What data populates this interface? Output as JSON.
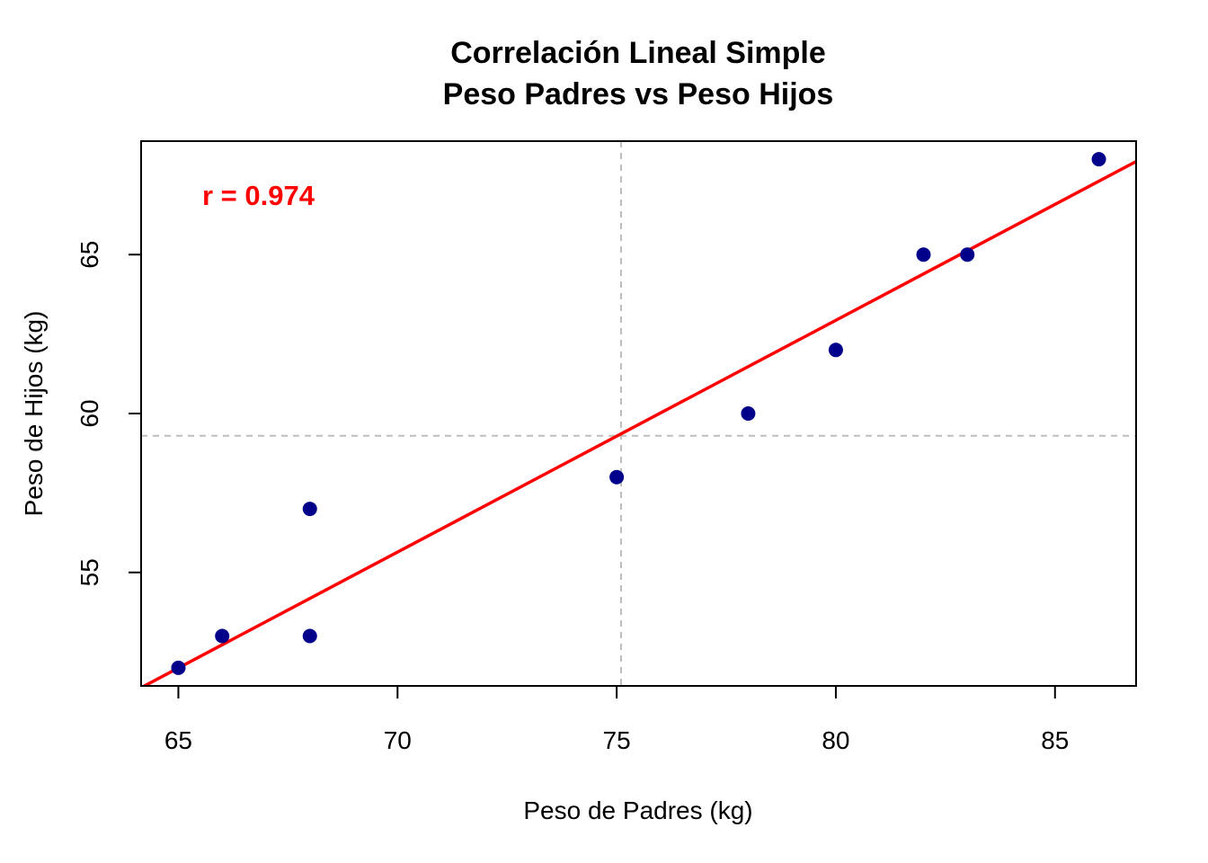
{
  "chart_data": {
    "type": "scatter",
    "title": "Correlación Lineal Simple",
    "subtitle": "Peso Padres vs Peso Hijos",
    "xlabel": "Peso de Padres (kg)",
    "ylabel": "Peso de Hijos (kg)",
    "xlim": [
      64.15,
      86.85
    ],
    "ylim": [
      51.43,
      68.57
    ],
    "x_ticks": [
      65,
      70,
      75,
      80,
      85
    ],
    "y_ticks": [
      55,
      60,
      65
    ],
    "points": [
      {
        "x": 65,
        "y": 52
      },
      {
        "x": 66,
        "y": 53
      },
      {
        "x": 68,
        "y": 53
      },
      {
        "x": 68,
        "y": 57
      },
      {
        "x": 75,
        "y": 58
      },
      {
        "x": 78,
        "y": 60
      },
      {
        "x": 80,
        "y": 62
      },
      {
        "x": 82,
        "y": 65
      },
      {
        "x": 83,
        "y": 65
      },
      {
        "x": 86,
        "y": 68
      }
    ],
    "regression_line": {
      "slope": 0.7293,
      "intercept": 4.59
    },
    "mean_x": 75.1,
    "mean_y": 59.3,
    "annotation": "r = 0.974",
    "grid": false,
    "colors": {
      "points": "#00008B",
      "regression": "#FF0000",
      "mean_lines": "#BEBEBE",
      "annotation": "#FF0000"
    }
  }
}
